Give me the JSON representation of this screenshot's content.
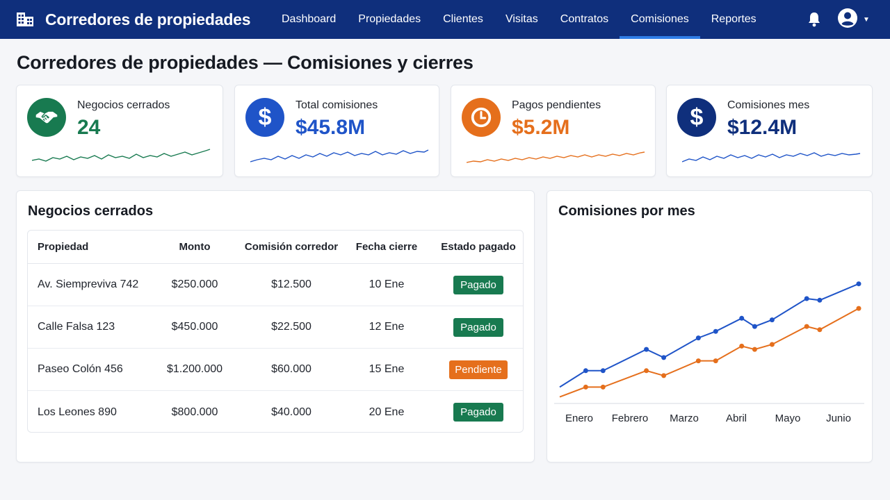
{
  "app": {
    "name": "Corredores de propiedades"
  },
  "nav": {
    "items": [
      "Dashboard",
      "Propiedades",
      "Clientes",
      "Visitas",
      "Contratos",
      "Comisiones",
      "Reportes"
    ],
    "active": "Comisiones"
  },
  "page": {
    "title": "Corredores de propiedades — Comisiones y cierres"
  },
  "kpis": [
    {
      "label": "Negocios cerrados",
      "value": "24",
      "color": "#187a50",
      "icon": "handshake-icon"
    },
    {
      "label": "Total comisiones",
      "value": "$45.8M",
      "color": "#1f54c8",
      "icon": "dollar-icon"
    },
    {
      "label": "Pagos pendientes",
      "value": "$5.2M",
      "color": "#e56f1c",
      "icon": "clock-icon"
    },
    {
      "label": "Comisiones mes",
      "value": "$12.4M",
      "color": "#0f2f7c",
      "icon": "dollar-icon"
    }
  ],
  "deals": {
    "title": "Negocios cerrados",
    "columns": [
      "Propiedad",
      "Monto",
      "Comisión corredor",
      "Fecha cierre",
      "Estado pagado"
    ],
    "rows": [
      {
        "propiedad": "Av. Siempreviva 742",
        "monto": "$250.000",
        "comision": "$12.500",
        "fecha": "10 Ene",
        "estado": "Pagado"
      },
      {
        "propiedad": "Calle Falsa 123",
        "monto": "$450.000",
        "comision": "$22.500",
        "fecha": "12 Ene",
        "estado": "Pagado"
      },
      {
        "propiedad": "Paseo Colón 456",
        "monto": "$1.200.000",
        "comision": "$60.000",
        "fecha": "15 Ene",
        "estado": "Pendiente"
      },
      {
        "propiedad": "Los Leones 890",
        "monto": "$800.000",
        "comision": "$40.000",
        "fecha": "20 Ene",
        "estado": "Pagado"
      }
    ]
  },
  "chart_title": "Comisiones por mes",
  "chart_data": {
    "type": "line",
    "title": "Comisiones por mes",
    "categories": [
      "Enero",
      "Febrero",
      "Marzo",
      "Abril",
      "Mayo",
      "Junio"
    ],
    "ylim": [
      0,
      10
    ],
    "grid": false,
    "series": [
      {
        "color": "#1f54c8",
        "x": [
          0,
          0.6,
          1,
          2,
          2.4,
          3.2,
          3.6,
          4.2,
          4.5,
          4.9,
          5.7,
          6.0,
          6.9
        ],
        "values": [
          1.0,
          2.0,
          2.0,
          3.3,
          2.8,
          4.0,
          4.4,
          5.2,
          4.7,
          5.1,
          6.4,
          6.3,
          7.3
        ]
      },
      {
        "color": "#e56f1c",
        "x": [
          0,
          0.6,
          1,
          2,
          2.4,
          3.2,
          3.6,
          4.2,
          4.5,
          4.9,
          5.7,
          6.0,
          6.9
        ],
        "values": [
          0.4,
          1.0,
          1.0,
          2.0,
          1.7,
          2.6,
          2.6,
          3.5,
          3.3,
          3.6,
          4.7,
          4.5,
          5.8
        ]
      }
    ]
  }
}
